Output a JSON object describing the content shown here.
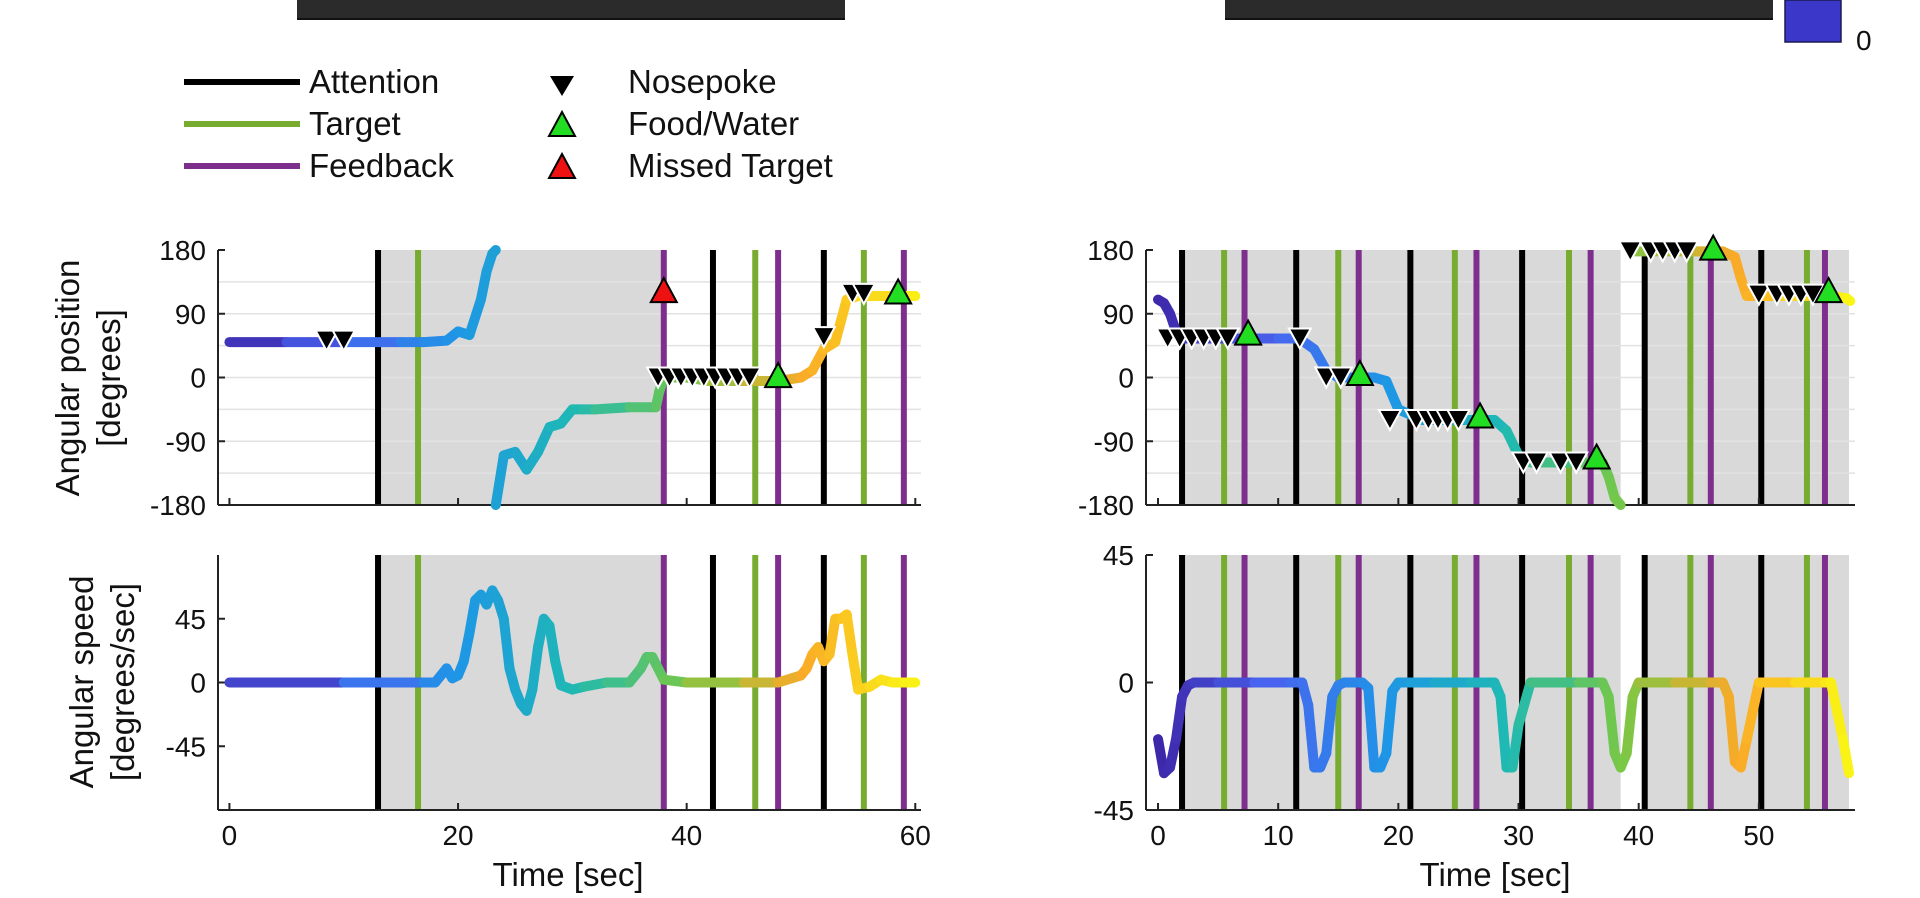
{
  "legend": {
    "lines": [
      {
        "label": "Attention",
        "color": "#000000"
      },
      {
        "label": "Target",
        "color": "#77AC30"
      },
      {
        "label": "Feedback",
        "color": "#7E2F8E"
      }
    ],
    "markers": [
      {
        "label": "Nosepoke",
        "shape": "triangle-down",
        "color": "#000000"
      },
      {
        "label": "Food/Water",
        "shape": "triangle-up",
        "color": "#22DD22"
      },
      {
        "label": "Missed Target",
        "shape": "triangle-up",
        "color": "#EE1111"
      }
    ]
  },
  "colorbar": {
    "label": "0",
    "color": "#3b37c9"
  },
  "chart_data": [
    {
      "type": "line",
      "ylabel": [
        "Angular position",
        "[degrees]"
      ],
      "xlim": [
        -1,
        60.5
      ],
      "ylim": [
        -180,
        180
      ],
      "yticks": [
        "180",
        "90",
        "0",
        "-90",
        "-180"
      ],
      "shaded_intervals": [
        [
          13,
          38
        ]
      ],
      "events": {
        "attention": [
          13,
          42.3,
          52
        ],
        "target": [
          16.5,
          46,
          55.5
        ],
        "feedback": [
          38,
          48,
          59
        ]
      },
      "series_x": [
        0,
        5,
        10,
        15,
        17,
        19,
        20,
        21,
        22,
        22.5,
        23,
        23.3
      ],
      "series_y": [
        50,
        50,
        50,
        50,
        50,
        52,
        65,
        60,
        110,
        150,
        175,
        180
      ],
      "series_b_x": [
        23.3,
        24,
        25,
        26,
        27,
        28,
        29,
        30,
        31,
        32,
        35,
        37.3,
        37.6,
        38,
        40,
        42,
        45,
        48,
        50,
        51,
        52,
        53,
        53.5,
        54,
        55,
        58,
        60
      ],
      "series_b_y": [
        -180,
        -110,
        -105,
        -130,
        -105,
        -70,
        -65,
        -45,
        -45,
        -45,
        -42,
        -42,
        -20,
        0,
        0,
        -5,
        -5,
        -5,
        0,
        10,
        40,
        50,
        80,
        110,
        115,
        115,
        115
      ],
      "nosepoke": [
        [
          8.5,
          52
        ],
        [
          10,
          52
        ],
        [
          37.5,
          0
        ],
        [
          38.5,
          0
        ],
        [
          39.5,
          0
        ],
        [
          40.5,
          0
        ],
        [
          41.5,
          0
        ],
        [
          42.5,
          0
        ],
        [
          43.5,
          0
        ],
        [
          44.5,
          0
        ],
        [
          45.5,
          0
        ],
        [
          52,
          57
        ],
        [
          54.5,
          118
        ],
        [
          55.5,
          118
        ]
      ],
      "food_water": [
        [
          48,
          2
        ],
        [
          58.5,
          120
        ]
      ],
      "missed_target": [
        [
          38,
          122
        ]
      ]
    },
    {
      "type": "line",
      "ylabel": [
        "Angular speed",
        "[degrees/sec]"
      ],
      "xlim": [
        -1,
        60.5
      ],
      "ylim": [
        -90,
        90
      ],
      "xticks": [
        "0",
        "20",
        "40",
        "60"
      ],
      "yticks": [
        "45",
        "0",
        "-45"
      ],
      "xlabel": "Time [sec]",
      "shaded_intervals": [
        [
          13,
          38
        ]
      ],
      "events": {
        "attention": [
          13,
          42.3,
          52
        ],
        "target": [
          16.5,
          46,
          55.5
        ],
        "feedback": [
          38,
          48,
          59
        ]
      },
      "series_x": [
        0,
        10,
        17,
        18,
        18.5,
        19,
        19.5,
        20,
        20.5,
        21,
        21.5,
        22,
        22.5,
        23,
        23.5,
        24,
        24.5,
        25,
        25.5,
        26,
        26.5,
        27,
        27.5,
        28,
        28.5,
        29,
        30,
        31,
        33,
        35,
        36,
        36.5,
        37,
        37.5,
        38,
        40,
        45,
        48,
        50,
        50.5,
        51,
        51.5,
        52,
        52.5,
        53,
        53.5,
        54,
        54.5,
        55,
        56,
        57,
        58,
        59,
        60
      ],
      "series_y": [
        0,
        0,
        0,
        0,
        5,
        10,
        3,
        5,
        15,
        35,
        58,
        62,
        55,
        65,
        58,
        45,
        10,
        -5,
        -15,
        -20,
        -5,
        25,
        45,
        40,
        15,
        -2,
        -5,
        -3,
        0,
        0,
        10,
        18,
        18,
        10,
        2,
        0,
        0,
        0,
        5,
        10,
        20,
        25,
        15,
        20,
        45,
        45,
        48,
        20,
        -5,
        -3,
        2,
        0,
        0,
        0
      ]
    },
    {
      "type": "line",
      "xlim": [
        -1,
        58
      ],
      "ylim": [
        -180,
        180
      ],
      "yticks": [
        "180",
        "90",
        "0",
        "-90",
        "-180"
      ],
      "shaded_intervals": [
        [
          2,
          38.5
        ],
        [
          40.5,
          57.5
        ]
      ],
      "events": {
        "attention": [
          2,
          11.5,
          21,
          30.3,
          40.5,
          50.2
        ],
        "target": [
          5.5,
          15,
          24.7,
          34.2,
          44.3,
          54
        ],
        "feedback": [
          7.2,
          16.7,
          26.5,
          36,
          46,
          55.5
        ]
      },
      "series_x": [
        0,
        0.5,
        1,
        1.5,
        2,
        3,
        5,
        7,
        10,
        11.5,
        12,
        13,
        14,
        15,
        16,
        17,
        18,
        19,
        20,
        22,
        25,
        27,
        28,
        29,
        30,
        31,
        35,
        37,
        37.5,
        38,
        38.5
      ],
      "series_y": [
        110,
        105,
        90,
        65,
        55,
        55,
        55,
        55,
        55,
        55,
        52,
        40,
        10,
        0,
        0,
        0,
        0,
        -5,
        -45,
        -60,
        -60,
        -60,
        -60,
        -75,
        -110,
        -120,
        -120,
        -120,
        -140,
        -170,
        -180
      ],
      "series_b_x": [
        39.5,
        41,
        43,
        45,
        46,
        47,
        48,
        48.5,
        49,
        50,
        52,
        55,
        56,
        57.3,
        57.6
      ],
      "series_b_y": [
        178,
        178,
        178,
        178,
        178,
        178,
        170,
        140,
        115,
        115,
        115,
        115,
        115,
        112,
        108
      ],
      "nosepoke": [
        [
          0.8,
          55
        ],
        [
          1.8,
          55
        ],
        [
          2.8,
          55
        ],
        [
          3.8,
          55
        ],
        [
          4.8,
          55
        ],
        [
          5.8,
          55
        ],
        [
          11.8,
          55
        ],
        [
          14,
          0
        ],
        [
          15.2,
          0
        ],
        [
          19.3,
          -60
        ],
        [
          21.5,
          -60
        ],
        [
          22.5,
          -60
        ],
        [
          23.3,
          -60
        ],
        [
          24.1,
          -60
        ],
        [
          25,
          -60
        ],
        [
          30.4,
          -120
        ],
        [
          31.5,
          -120
        ],
        [
          33.5,
          -120
        ],
        [
          34.8,
          -120
        ],
        [
          39.3,
          178
        ],
        [
          41,
          178
        ],
        [
          42,
          178
        ],
        [
          43,
          178
        ],
        [
          44,
          178
        ],
        [
          50,
          117
        ],
        [
          51.5,
          117
        ],
        [
          52.5,
          117
        ],
        [
          53.5,
          117
        ],
        [
          54.5,
          117
        ]
      ],
      "food_water": [
        [
          7.5,
          62
        ],
        [
          16.8,
          5
        ],
        [
          26.8,
          -55
        ],
        [
          36.5,
          -113
        ],
        [
          46.2,
          182
        ],
        [
          55.8,
          122
        ]
      ]
    },
    {
      "type": "line",
      "xlim": [
        -1,
        58
      ],
      "ylim": [
        -45,
        45
      ],
      "xticks": [
        "0",
        "10",
        "20",
        "30",
        "40",
        "50"
      ],
      "yticks": [
        "45",
        "0",
        "-45"
      ],
      "xlabel": "Time [sec]",
      "shaded_intervals": [
        [
          2,
          38.5
        ],
        [
          40.5,
          57.5
        ]
      ],
      "events": {
        "attention": [
          2,
          11.5,
          21,
          30.3,
          40.5,
          50.2
        ],
        "target": [
          5.5,
          15,
          24.7,
          34.2,
          44.3,
          54
        ],
        "feedback": [
          7.2,
          16.7,
          26.5,
          36,
          46,
          55.5
        ]
      },
      "series_x": [
        0,
        0.5,
        1,
        1.5,
        2,
        2.5,
        3,
        5,
        8,
        11,
        12,
        12.5,
        13,
        13.5,
        14,
        14.5,
        15,
        15.5,
        16,
        17,
        17.5,
        18,
        18.5,
        19,
        19.5,
        20,
        21,
        23,
        26,
        28,
        28.5,
        29,
        29.5,
        30,
        31,
        35,
        37,
        37.5,
        38,
        38.5,
        39,
        39.5,
        40,
        43,
        46,
        47,
        47.5,
        48,
        48.5,
        49,
        50,
        53,
        55.5,
        56,
        57,
        57.5
      ],
      "series_y": [
        -20,
        -32,
        -30,
        -20,
        -5,
        -1,
        0,
        0,
        0,
        0,
        0,
        -8,
        -30,
        -30,
        -25,
        -5,
        -1,
        0,
        0,
        0,
        -2,
        -30,
        -30,
        -25,
        -3,
        0,
        0,
        0,
        0,
        0,
        -5,
        -30,
        -30,
        -15,
        0,
        0,
        0,
        -5,
        -25,
        -30,
        -25,
        -5,
        0,
        0,
        0,
        0,
        -5,
        -28,
        -30,
        -20,
        0,
        0,
        0,
        0,
        -20,
        -32
      ]
    }
  ]
}
